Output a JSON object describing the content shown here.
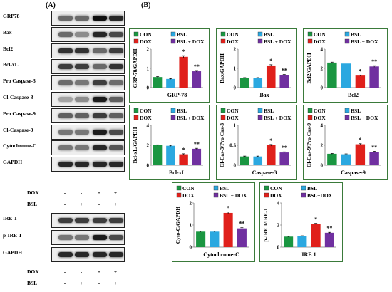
{
  "panel_a_label": "(A)",
  "panel_b_label": "(B)",
  "blots_top": [
    {
      "name": "GRP78",
      "intensity": [
        0.55,
        0.55,
        0.95,
        0.85
      ]
    },
    {
      "name": "Bax",
      "intensity": [
        0.55,
        0.4,
        0.85,
        0.7
      ]
    },
    {
      "name": "Bcl2",
      "intensity": [
        0.8,
        0.8,
        0.55,
        0.75
      ]
    },
    {
      "name": "Bcl-xL",
      "intensity": [
        0.75,
        0.75,
        0.55,
        0.8
      ]
    },
    {
      "name": "Pro Caspase-3",
      "intensity": [
        0.55,
        0.5,
        0.75,
        0.55
      ]
    },
    {
      "name": "Cl-Caspase-3",
      "intensity": [
        0.3,
        0.4,
        0.9,
        0.6
      ]
    },
    {
      "name": "Pro Caspase-9",
      "intensity": [
        0.6,
        0.6,
        0.75,
        0.6
      ]
    },
    {
      "name": "Cl-Caspase-9",
      "intensity": [
        0.5,
        0.5,
        0.9,
        0.7
      ]
    },
    {
      "name": "Cytochrome-C",
      "intensity": [
        0.5,
        0.5,
        0.85,
        0.65
      ]
    },
    {
      "name": "GAPDH",
      "intensity": [
        0.85,
        0.85,
        0.85,
        0.85
      ]
    }
  ],
  "treat_top": [
    {
      "name": "DOX",
      "signs": [
        "-",
        "-",
        "+",
        "+"
      ]
    },
    {
      "name": "BSL",
      "signs": [
        "-",
        "+",
        "-",
        "+"
      ]
    }
  ],
  "blots_bottom": [
    {
      "name": "IRE-1",
      "intensity": [
        0.75,
        0.75,
        0.75,
        0.75
      ]
    },
    {
      "name": "p-IRE-1",
      "intensity": [
        0.5,
        0.5,
        0.9,
        0.7
      ]
    },
    {
      "name": "GAPDH",
      "intensity": [
        0.85,
        0.85,
        0.85,
        0.85
      ]
    }
  ],
  "treat_bottom": [
    {
      "name": "DOX",
      "signs": [
        "-",
        "-",
        "+",
        "+"
      ]
    },
    {
      "name": "BSL",
      "signs": [
        "-",
        "+",
        "-",
        "+"
      ]
    }
  ],
  "colors": {
    "CON": "#1a9641",
    "BSL": "#2ba8e0",
    "DOX": "#e0201b",
    "BSL + DOX": "#7030a0",
    "frame": "#3a7a3a"
  },
  "chart_data": [
    {
      "type": "bar",
      "categories": [
        "CON",
        "BSL",
        "DOX",
        "BSL + DOX"
      ],
      "values": [
        0.55,
        0.45,
        1.6,
        0.85
      ],
      "errors": [
        0.03,
        0.02,
        0.06,
        0.04
      ],
      "sig": [
        "",
        "",
        "*",
        "**"
      ],
      "ylabel": "GRP-78/GAPDH",
      "xlabel": "GRP-78",
      "ylim": [
        0,
        2
      ],
      "yticks": [
        "0",
        "1",
        "2"
      ],
      "legend": [
        "CON",
        "BSL",
        "DOX",
        "BSL + DOX"
      ]
    },
    {
      "type": "bar",
      "categories": [
        "CON",
        "BSL",
        "DOX",
        "BSL + DOX"
      ],
      "values": [
        0.5,
        0.5,
        1.15,
        0.65
      ],
      "errors": [
        0.02,
        0.02,
        0.04,
        0.03
      ],
      "sig": [
        "",
        "",
        "*",
        "**"
      ],
      "ylabel": "Bax/GAPDH",
      "xlabel": "Bax",
      "ylim": [
        0,
        2
      ],
      "yticks": [
        "0",
        "1",
        "2"
      ],
      "legend": [
        "CON",
        "BSL",
        "DOX",
        "BSL + DOX"
      ]
    },
    {
      "type": "bar",
      "categories": [
        "CON",
        "BSL",
        "DOX",
        "BSL + DOX"
      ],
      "values": [
        2.6,
        2.5,
        1.25,
        2.2
      ],
      "errors": [
        0.05,
        0.05,
        0.06,
        0.08
      ],
      "sig": [
        "",
        "",
        "*",
        "**"
      ],
      "ylabel": "Bcl2/GAPDH",
      "xlabel": "Bcl2",
      "ylim": [
        0,
        4
      ],
      "yticks": [
        "0",
        "2",
        "4"
      ],
      "legend": [
        "CON",
        "BSL",
        "DOX",
        "BSL + DOX"
      ]
    },
    {
      "type": "bar",
      "categories": [
        "CON",
        "BSL",
        "DOX",
        "BSL + DOX"
      ],
      "values": [
        2.0,
        1.95,
        1.1,
        1.65
      ],
      "errors": [
        0.05,
        0.05,
        0.05,
        0.05
      ],
      "sig": [
        "",
        "",
        "*",
        "**"
      ],
      "ylabel": "Bcl-xL/GAPDH",
      "xlabel": "Bcl-xL",
      "ylim": [
        0,
        4
      ],
      "yticks": [
        "0",
        "2",
        "4"
      ],
      "legend": [
        "CON",
        "BSL",
        "DOX",
        "BSL + DOX"
      ]
    },
    {
      "type": "bar",
      "categories": [
        "CON",
        "BSL",
        "DOX",
        "BSL + DOX"
      ],
      "values": [
        0.22,
        0.22,
        0.5,
        0.32
      ],
      "errors": [
        0.01,
        0.01,
        0.02,
        0.015
      ],
      "sig": [
        "",
        "",
        "*",
        "**"
      ],
      "ylabel": "Cl-Cas-3/Pro Cas-3",
      "xlabel": "Caspase-3",
      "ylim": [
        0,
        1
      ],
      "yticks": [
        "0",
        "0.5",
        "1"
      ],
      "legend": [
        "CON",
        "BSL",
        "DOX",
        "BSL + DOX"
      ]
    },
    {
      "type": "bar",
      "categories": [
        "CON",
        "BSL",
        "DOX",
        "BSL + DOX"
      ],
      "values": [
        1.15,
        1.1,
        2.1,
        1.35
      ],
      "errors": [
        0.04,
        0.04,
        0.06,
        0.05
      ],
      "sig": [
        "",
        "",
        "*",
        "**"
      ],
      "ylabel": "Cl-Cas-9/Pro Cas-9",
      "xlabel": "Caspase-9",
      "ylim": [
        0,
        4
      ],
      "yticks": [
        "0",
        "2",
        "4"
      ],
      "legend": [
        "CON",
        "BSL",
        "DOX",
        "BSL + DOX"
      ]
    },
    {
      "type": "bar",
      "categories": [
        "CON",
        "BSL",
        "DOX",
        "BSL + DOX"
      ],
      "values": [
        0.7,
        0.7,
        1.55,
        0.85
      ],
      "errors": [
        0.02,
        0.02,
        0.04,
        0.03
      ],
      "sig": [
        "",
        "",
        "*",
        "**"
      ],
      "ylabel": "Cyto-C/GAPDH",
      "xlabel": "Cytochrome-C",
      "ylim": [
        0,
        2
      ],
      "yticks": [
        "0",
        "1",
        "2"
      ],
      "legend": [
        "CON",
        "BSL",
        "DOX",
        "BSL + DOX"
      ]
    },
    {
      "type": "bar",
      "categories": [
        "CON",
        "BSL",
        "DOX",
        "BSL+DOX"
      ],
      "values": [
        0.95,
        1.0,
        2.1,
        1.3
      ],
      "errors": [
        0.03,
        0.03,
        0.05,
        0.04
      ],
      "sig": [
        "",
        "",
        "*",
        "**"
      ],
      "ylabel": "p-IRE 1/IRE-1",
      "xlabel": "IRE 1",
      "ylim": [
        0,
        4
      ],
      "yticks": [
        "0",
        "2",
        "4"
      ],
      "legend": [
        "CON",
        "BSL",
        "DOX",
        "BSL+DOX"
      ]
    }
  ]
}
